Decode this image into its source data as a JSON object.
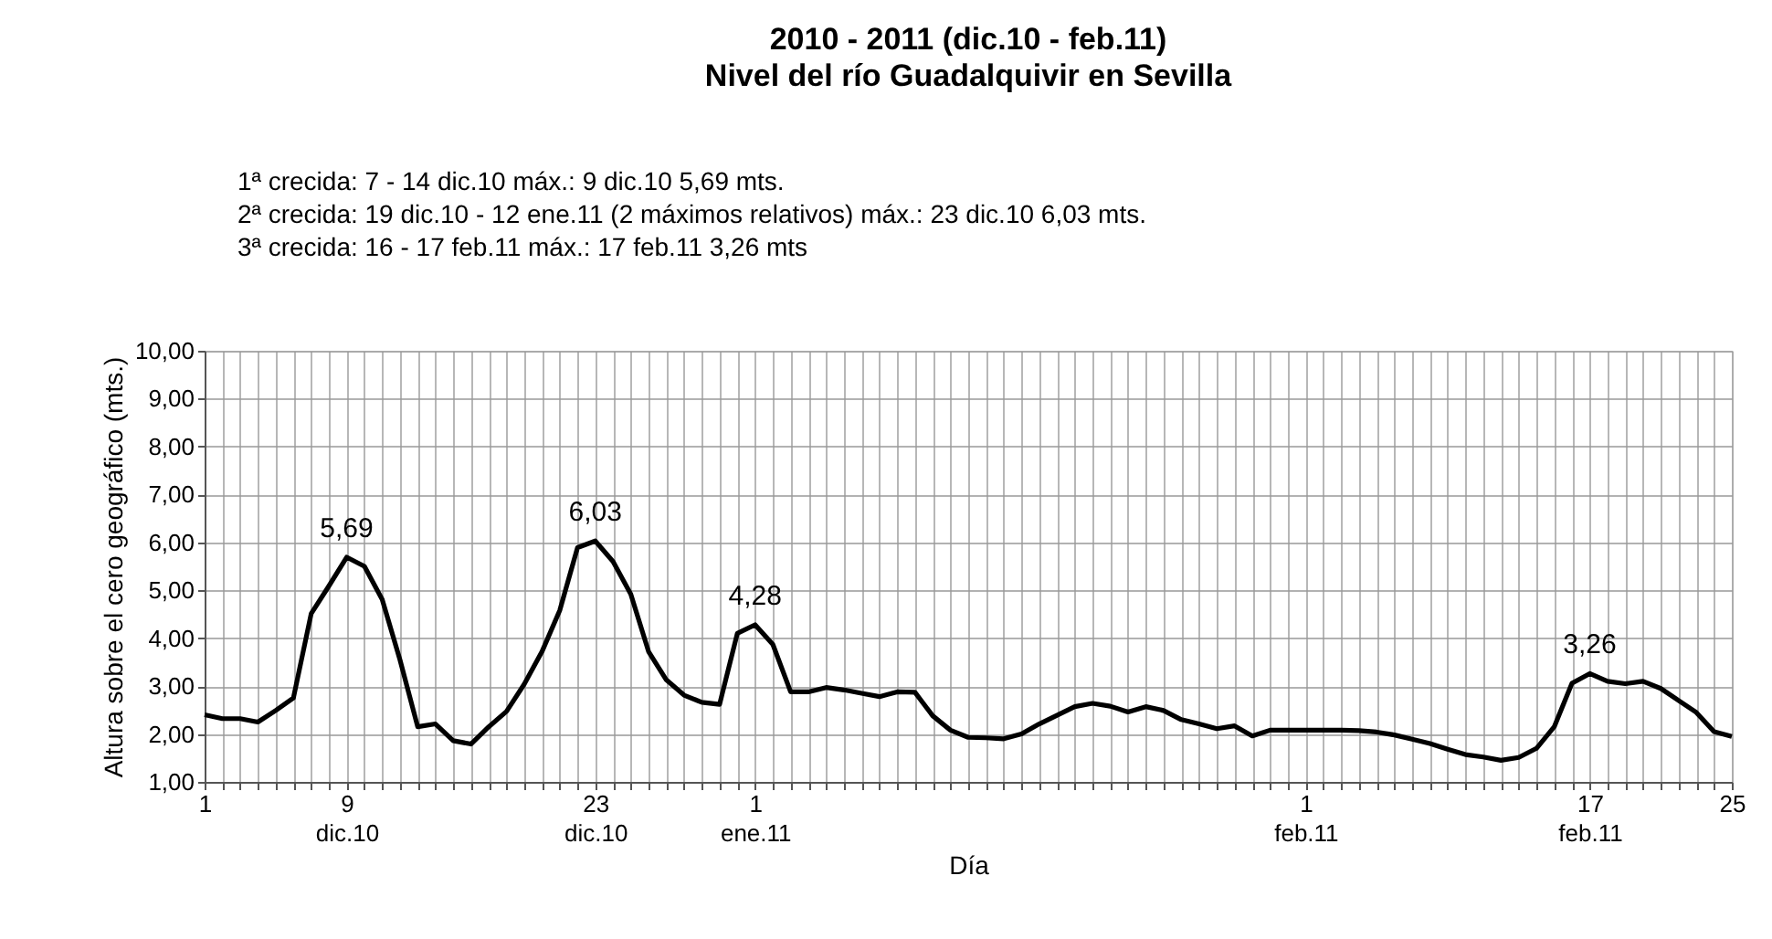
{
  "chart_data": {
    "type": "line",
    "title": "2010 - 2011   (dic.10 - feb.11)\nNivel del río Guadalquivir en Sevilla",
    "annotations": [
      "1ª crecida: 7 - 14 dic.10   máx.: 9 dic.10   5,69 mts.",
      "2ª crecida: 19 dic.10 - 12 ene.11 (2 máximos relativos)   máx.: 23 dic.10   6,03 mts.",
      "3ª crecida: 16 - 17 feb.11   máx.: 17 feb.11   3,26 mts"
    ],
    "xlabel": "Día",
    "ylabel": "Altura sobre el cero geográfico (mts.)",
    "x": [
      "2010-12-01",
      "2010-12-02",
      "2010-12-03",
      "2010-12-04",
      "2010-12-05",
      "2010-12-06",
      "2010-12-07",
      "2010-12-08",
      "2010-12-09",
      "2010-12-10",
      "2010-12-11",
      "2010-12-12",
      "2010-12-13",
      "2010-12-14",
      "2010-12-15",
      "2010-12-16",
      "2010-12-17",
      "2010-12-18",
      "2010-12-19",
      "2010-12-20",
      "2010-12-21",
      "2010-12-22",
      "2010-12-23",
      "2010-12-24",
      "2010-12-25",
      "2010-12-26",
      "2010-12-27",
      "2010-12-28",
      "2010-12-29",
      "2010-12-30",
      "2010-12-31",
      "2011-01-01",
      "2011-01-02",
      "2011-01-03",
      "2011-01-04",
      "2011-01-05",
      "2011-01-06",
      "2011-01-07",
      "2011-01-08",
      "2011-01-09",
      "2011-01-10",
      "2011-01-11",
      "2011-01-12",
      "2011-01-13",
      "2011-01-14",
      "2011-01-15",
      "2011-01-16",
      "2011-01-17",
      "2011-01-18",
      "2011-01-19",
      "2011-01-20",
      "2011-01-21",
      "2011-01-22",
      "2011-01-23",
      "2011-01-24",
      "2011-01-25",
      "2011-01-26",
      "2011-01-27",
      "2011-01-28",
      "2011-01-29",
      "2011-01-30",
      "2011-01-31",
      "2011-02-01",
      "2011-02-02",
      "2011-02-03",
      "2011-02-04",
      "2011-02-05",
      "2011-02-06",
      "2011-02-07",
      "2011-02-08",
      "2011-02-09",
      "2011-02-10",
      "2011-02-11",
      "2011-02-12",
      "2011-02-13",
      "2011-02-14",
      "2011-02-15",
      "2011-02-16",
      "2011-02-17",
      "2011-02-18",
      "2011-02-19",
      "2011-02-20",
      "2011-02-21",
      "2011-02-22",
      "2011-02-23",
      "2011-02-24",
      "2011-02-25"
    ],
    "series": [
      {
        "color": "#000000",
        "values": [
          2.4,
          2.32,
          2.32,
          2.25,
          2.49,
          2.75,
          4.51,
          5.09,
          5.69,
          5.5,
          4.81,
          3.55,
          2.15,
          2.21,
          1.86,
          1.79,
          2.15,
          2.47,
          3.04,
          3.72,
          4.58,
          5.89,
          6.03,
          5.6,
          4.92,
          3.72,
          3.13,
          2.81,
          2.66,
          2.62,
          4.1,
          4.28,
          3.87,
          2.88,
          2.88,
          2.97,
          2.92,
          2.85,
          2.78,
          2.88,
          2.87,
          2.38,
          2.08,
          1.93,
          1.92,
          1.9,
          2.0,
          2.21,
          2.39,
          2.57,
          2.64,
          2.58,
          2.46,
          2.57,
          2.49,
          2.3,
          2.21,
          2.11,
          2.17,
          1.96,
          2.08,
          2.08,
          2.08,
          2.08,
          2.08,
          2.07,
          2.04,
          1.98,
          1.89,
          1.8,
          1.68,
          1.57,
          1.52,
          1.45,
          1.51,
          1.7,
          2.15,
          3.06,
          3.26,
          3.1,
          3.05,
          3.1,
          2.95,
          2.7,
          2.45,
          2.05,
          1.95
        ],
        "value_labels": [
          null,
          null,
          null,
          null,
          null,
          null,
          null,
          null,
          "5,69",
          null,
          null,
          null,
          null,
          null,
          null,
          null,
          null,
          null,
          null,
          null,
          null,
          null,
          "6,03",
          null,
          null,
          null,
          null,
          null,
          null,
          null,
          null,
          "4,28",
          null,
          null,
          null,
          null,
          null,
          null,
          null,
          null,
          null,
          null,
          null,
          null,
          null,
          null,
          null,
          null,
          null,
          null,
          null,
          null,
          null,
          null,
          null,
          null,
          null,
          null,
          null,
          null,
          null,
          null,
          null,
          null,
          null,
          null,
          null,
          null,
          null,
          null,
          null,
          null,
          null,
          null,
          null,
          null,
          null,
          null,
          "3,26",
          null,
          null,
          null,
          null,
          null,
          null,
          null,
          null
        ]
      }
    ],
    "xlim": [
      "2010-12-01",
      "2011-02-25"
    ],
    "xticks": [
      {
        "value": "2010-12-01",
        "label": "1"
      },
      {
        "value": "2010-12-02",
        "label": null
      },
      {
        "value": "2010-12-03",
        "label": null
      },
      {
        "value": "2010-12-04",
        "label": null
      },
      {
        "value": "2010-12-05",
        "label": null
      },
      {
        "value": "2010-12-06",
        "label": null
      },
      {
        "value": "2010-12-07",
        "label": null
      },
      {
        "value": "2010-12-08",
        "label": null
      },
      {
        "value": "2010-12-09",
        "label": "9\ndic.10"
      },
      {
        "value": "2010-12-10",
        "label": null
      },
      {
        "value": "2010-12-11",
        "label": null
      },
      {
        "value": "2010-12-12",
        "label": null
      },
      {
        "value": "2010-12-13",
        "label": null
      },
      {
        "value": "2010-12-14",
        "label": null
      },
      {
        "value": "2010-12-15",
        "label": null
      },
      {
        "value": "2010-12-16",
        "label": null
      },
      {
        "value": "2010-12-17",
        "label": null
      },
      {
        "value": "2010-12-18",
        "label": null
      },
      {
        "value": "2010-12-19",
        "label": null
      },
      {
        "value": "2010-12-20",
        "label": null
      },
      {
        "value": "2010-12-21",
        "label": null
      },
      {
        "value": "2010-12-22",
        "label": null
      },
      {
        "value": "2010-12-23",
        "label": "23\ndic.10"
      },
      {
        "value": "2010-12-24",
        "label": null
      },
      {
        "value": "2010-12-25",
        "label": null
      },
      {
        "value": "2010-12-26",
        "label": null
      },
      {
        "value": "2010-12-27",
        "label": null
      },
      {
        "value": "2010-12-28",
        "label": null
      },
      {
        "value": "2010-12-29",
        "label": null
      },
      {
        "value": "2010-12-30",
        "label": null
      },
      {
        "value": "2010-12-31",
        "label": null
      },
      {
        "value": "2011-01-01",
        "label": "1\nene.11"
      },
      {
        "value": "2011-01-02",
        "label": null
      },
      {
        "value": "2011-01-03",
        "label": null
      },
      {
        "value": "2011-01-04",
        "label": null
      },
      {
        "value": "2011-01-05",
        "label": null
      },
      {
        "value": "2011-01-06",
        "label": null
      },
      {
        "value": "2011-01-07",
        "label": null
      },
      {
        "value": "2011-01-08",
        "label": null
      },
      {
        "value": "2011-01-09",
        "label": null
      },
      {
        "value": "2011-01-10",
        "label": null
      },
      {
        "value": "2011-01-11",
        "label": null
      },
      {
        "value": "2011-01-12",
        "label": null
      },
      {
        "value": "2011-01-13",
        "label": null
      },
      {
        "value": "2011-01-14",
        "label": null
      },
      {
        "value": "2011-01-15",
        "label": null
      },
      {
        "value": "2011-01-16",
        "label": null
      },
      {
        "value": "2011-01-17",
        "label": null
      },
      {
        "value": "2011-01-18",
        "label": null
      },
      {
        "value": "2011-01-19",
        "label": null
      },
      {
        "value": "2011-01-20",
        "label": null
      },
      {
        "value": "2011-01-21",
        "label": null
      },
      {
        "value": "2011-01-22",
        "label": null
      },
      {
        "value": "2011-01-23",
        "label": null
      },
      {
        "value": "2011-01-24",
        "label": null
      },
      {
        "value": "2011-01-25",
        "label": null
      },
      {
        "value": "2011-01-26",
        "label": null
      },
      {
        "value": "2011-01-27",
        "label": null
      },
      {
        "value": "2011-01-28",
        "label": null
      },
      {
        "value": "2011-01-29",
        "label": null
      },
      {
        "value": "2011-01-30",
        "label": null
      },
      {
        "value": "2011-01-31",
        "label": null
      },
      {
        "value": "2011-02-01",
        "label": "1\nfeb.11"
      },
      {
        "value": "2011-02-02",
        "label": null
      },
      {
        "value": "2011-02-03",
        "label": null
      },
      {
        "value": "2011-02-04",
        "label": null
      },
      {
        "value": "2011-02-05",
        "label": null
      },
      {
        "value": "2011-02-06",
        "label": null
      },
      {
        "value": "2011-02-07",
        "label": null
      },
      {
        "value": "2011-02-08",
        "label": null
      },
      {
        "value": "2011-02-09",
        "label": null
      },
      {
        "value": "2011-02-10",
        "label": null
      },
      {
        "value": "2011-02-11",
        "label": null
      },
      {
        "value": "2011-02-12",
        "label": null
      },
      {
        "value": "2011-02-13",
        "label": null
      },
      {
        "value": "2011-02-14",
        "label": null
      },
      {
        "value": "2011-02-15",
        "label": null
      },
      {
        "value": "2011-02-16",
        "label": null
      },
      {
        "value": "2011-02-17",
        "label": "17\nfeb.11"
      },
      {
        "value": "2011-02-18",
        "label": null
      },
      {
        "value": "2011-02-19",
        "label": null
      },
      {
        "value": "2011-02-20",
        "label": null
      },
      {
        "value": "2011-02-21",
        "label": null
      },
      {
        "value": "2011-02-22",
        "label": null
      },
      {
        "value": "2011-02-23",
        "label": null
      },
      {
        "value": "2011-02-24",
        "label": null
      },
      {
        "value": "2011-02-25",
        "label": "25"
      }
    ],
    "ylim": [
      1,
      10
    ],
    "yticks": [
      {
        "value": 1,
        "label": "1,00"
      },
      {
        "value": 2,
        "label": "2,00"
      },
      {
        "value": 3,
        "label": "3,00"
      },
      {
        "value": 4,
        "label": "4,00"
      },
      {
        "value": 5,
        "label": "5,00"
      },
      {
        "value": 6,
        "label": "6,00"
      },
      {
        "value": 7,
        "label": "7,00"
      },
      {
        "value": 8,
        "label": "8,00"
      },
      {
        "value": 9,
        "label": "9,00"
      },
      {
        "value": 10,
        "label": "10,00"
      }
    ],
    "grid": true,
    "marker": "none",
    "line_style": "solid"
  }
}
